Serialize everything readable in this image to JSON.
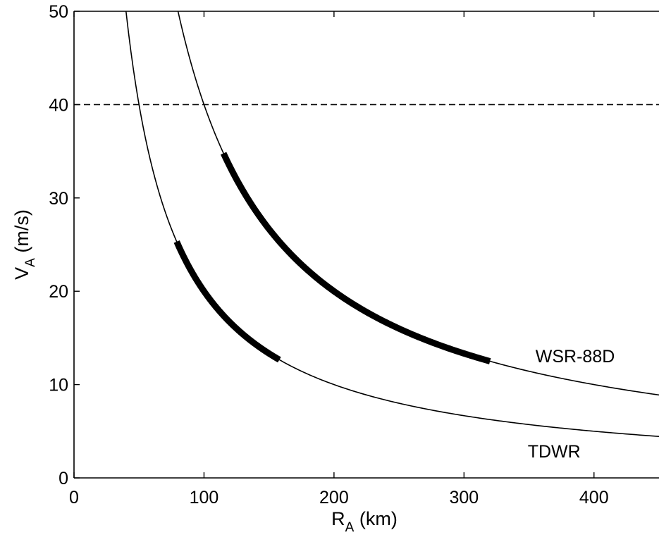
{
  "chart_data": {
    "type": "line",
    "x_axis": {
      "label_main": "R",
      "label_sub": "A",
      "label_unit": " (km)",
      "range": [
        0,
        450
      ],
      "ticks": [
        0,
        100,
        200,
        300,
        400
      ]
    },
    "y_axis": {
      "label_main": "V",
      "label_sub": "A",
      "label_unit": " (m/s)",
      "range": [
        0,
        50
      ],
      "ticks": [
        0,
        10,
        20,
        30,
        40,
        50
      ]
    },
    "grid": false,
    "legend": null,
    "reference_lines": [
      {
        "axis": "y",
        "value": 40,
        "style": "dashed"
      }
    ],
    "series": [
      {
        "name": "WSR-88D",
        "relation": "V_A * R_A = 4000",
        "product": 4000,
        "x_range": [
          80,
          450
        ],
        "highlight_x_range": [
          115,
          320
        ],
        "label_x": 355,
        "label_y": 12.4
      },
      {
        "name": "TDWR",
        "relation": "V_A * R_A = 2000",
        "product": 2000,
        "x_range": [
          40,
          450
        ],
        "highlight_x_range": [
          79,
          158
        ],
        "label_x": 349,
        "label_y": 2.2
      }
    ]
  }
}
